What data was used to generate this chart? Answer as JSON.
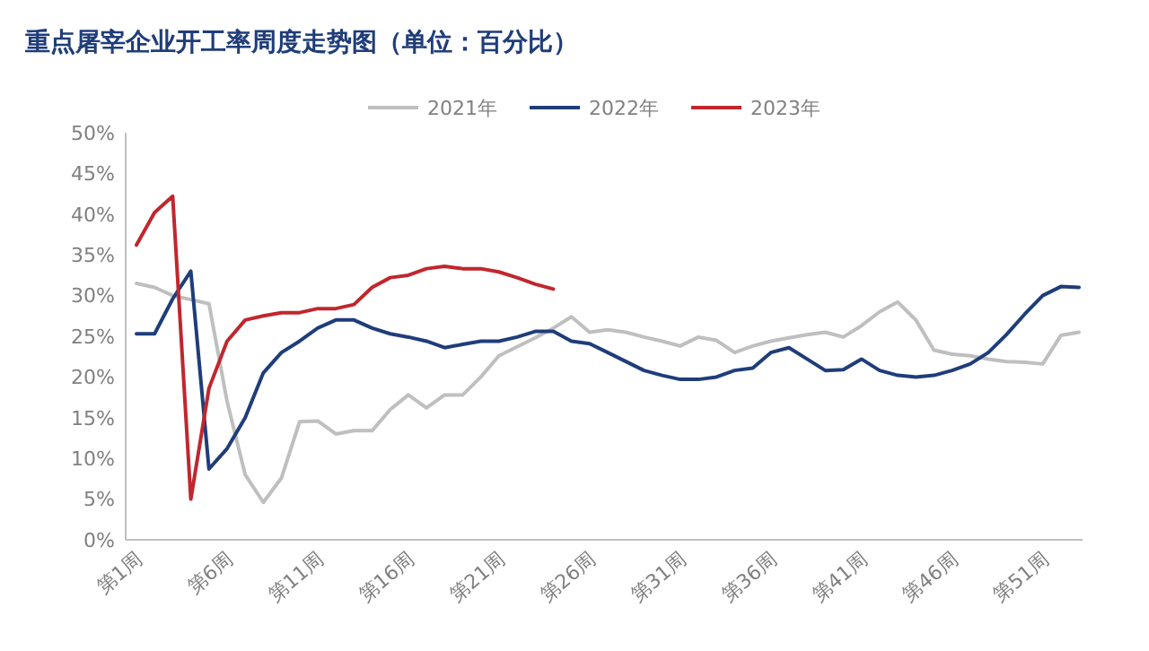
{
  "chart_data": {
    "type": "line",
    "title": "重点屠宰企业开工率周度走势图（单位：百分比）",
    "categories": [
      "第1周",
      null,
      null,
      null,
      null,
      "第6周",
      null,
      null,
      null,
      null,
      "第11周",
      null,
      null,
      null,
      null,
      "第16周",
      null,
      null,
      null,
      null,
      "第21周",
      null,
      null,
      null,
      null,
      "第26周",
      null,
      null,
      null,
      null,
      "第31周",
      null,
      null,
      null,
      null,
      "第36周",
      null,
      null,
      null,
      null,
      "第41周",
      null,
      null,
      null,
      null,
      "第46周",
      null,
      null,
      null,
      null,
      "第51周",
      null,
      null
    ],
    "series": [
      {
        "name": "2021年",
        "color": "#bfbfbf",
        "values": [
          31.5,
          31,
          30,
          29.5,
          29,
          17,
          8,
          4.6,
          7.6,
          14.5,
          14.6,
          13,
          13.4,
          13.4,
          16,
          17.8,
          16.2,
          17.8,
          17.8,
          20,
          22.6,
          23.7,
          24.8,
          26,
          27.4,
          25.5,
          25.8,
          25.5,
          24.9,
          24.4,
          23.8,
          24.9,
          24.5,
          23,
          23.8,
          24.4,
          24.8,
          25.2,
          25.5,
          24.9,
          26.3,
          28,
          29.2,
          27,
          23.3,
          22.8,
          22.6,
          22.2,
          21.9,
          21.8,
          21.6,
          25.1,
          25.5
        ]
      },
      {
        "name": "2022年",
        "color": "#1f3d7a",
        "values": [
          25.3,
          25.3,
          29.6,
          33,
          8.7,
          11.2,
          15,
          20.5,
          23,
          24.4,
          26,
          27,
          27,
          26,
          25.3,
          24.9,
          24.4,
          23.6,
          24,
          24.4,
          24.4,
          24.9,
          25.6,
          25.6,
          24.4,
          24.1,
          23,
          21.9,
          20.8,
          20.2,
          19.7,
          19.7,
          20,
          20.8,
          21.1,
          23,
          23.6,
          22.2,
          20.8,
          20.9,
          22.2,
          20.8,
          20.2,
          20,
          20.2,
          20.8,
          21.6,
          23,
          25.2,
          27.7,
          30,
          31.1,
          31
        ]
      },
      {
        "name": "2023年",
        "color": "#c0272d",
        "values": [
          36.2,
          40.2,
          42.2,
          5,
          18.6,
          24.4,
          27,
          27.5,
          27.9,
          27.9,
          28.4,
          28.4,
          28.9,
          31,
          32.2,
          32.5,
          33.3,
          33.6,
          33.3,
          33.3,
          32.9,
          32.2,
          31.4,
          30.8,
          null,
          null,
          null,
          null,
          null,
          null,
          null,
          null,
          null,
          null,
          null,
          null,
          null,
          null,
          null,
          null,
          null,
          null,
          null,
          null,
          null,
          null,
          null,
          null,
          null,
          null,
          null,
          null,
          null
        ]
      }
    ],
    "ylim": [
      0,
      50
    ],
    "yticks": [
      {
        "value": 0,
        "label": "0%"
      },
      {
        "value": 5,
        "label": "5%"
      },
      {
        "value": 10,
        "label": "10%"
      },
      {
        "value": 15,
        "label": "15%"
      },
      {
        "value": 20,
        "label": "20%"
      },
      {
        "value": 25,
        "label": "25%"
      },
      {
        "value": 30,
        "label": "30%"
      },
      {
        "value": 35,
        "label": "35%"
      },
      {
        "value": 40,
        "label": "40%"
      },
      {
        "value": 45,
        "label": "45%"
      },
      {
        "value": 50,
        "label": "50%"
      }
    ],
    "legend": "top",
    "grid": false,
    "marker": "none",
    "line_style": "solid"
  }
}
